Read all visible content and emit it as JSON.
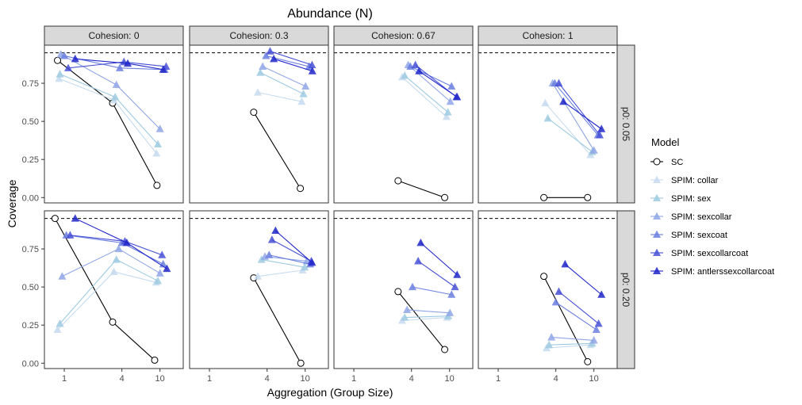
{
  "chart_data": {
    "type": "line",
    "title": "Abundance (N)",
    "xlabel": "Aggregation (Group Size)",
    "ylabel": "Coverage",
    "x_scale": "log",
    "xlim": [
      0.62,
      17.5
    ],
    "x_ticks": [
      1,
      4,
      10
    ],
    "ylim": [
      -0.035,
      1.0
    ],
    "y_ticks": [
      0.0,
      0.25,
      0.5,
      0.75
    ],
    "y_tick_labels": [
      "0.00",
      "0.25",
      "0.50",
      "0.75"
    ],
    "reference_line": 0.95,
    "col_facets": [
      "Cohesion: 0",
      "Cohesion: 0.3",
      "Cohesion: 0.67",
      "Cohesion: 1"
    ],
    "row_facets": [
      "p0: 0.05",
      "p0: 0.20"
    ],
    "legend": {
      "title": "Model",
      "position": "right",
      "entries": [
        "SC",
        "SPIM: collar",
        "SPIM: sex",
        "SPIM: sexcollar",
        "SPIM: sexcoat",
        "SPIM: sexcollarcoat",
        "SPIM: antlerssexcollarcoat"
      ]
    },
    "colors": {
      "SC": "#000000",
      "SPIM: collar": "#c6dbef",
      "SPIM: sex": "#9ecae1",
      "SPIM: sexcollar": "#8fa6e6",
      "SPIM: sexcoat": "#6b7fe0",
      "SPIM: sexcollarcoat": "#4650d6",
      "SPIM: antlerssexcollarcoat": "#2026c8"
    },
    "panels": [
      {
        "row": 0,
        "col": 0,
        "series": [
          {
            "name": "SC",
            "x": [
              0.85,
              3.2,
              9.3
            ],
            "y": [
              0.9,
              0.62,
              0.08
            ]
          },
          {
            "name": "SPIM: collar",
            "x": [
              0.88,
              3.3,
              9.2
            ],
            "y": [
              0.78,
              0.64,
              0.29
            ]
          },
          {
            "name": "SPIM: sex",
            "x": [
              0.9,
              3.4,
              9.5
            ],
            "y": [
              0.81,
              0.66,
              0.35
            ]
          },
          {
            "name": "SPIM: sexcollar",
            "x": [
              0.92,
              3.5,
              10.0
            ],
            "y": [
              0.94,
              0.74,
              0.45
            ]
          },
          {
            "name": "SPIM: sexcoat",
            "x": [
              1.0,
              3.8,
              11.2
            ],
            "y": [
              0.93,
              0.85,
              0.84
            ]
          },
          {
            "name": "SPIM: sexcollarcoat",
            "x": [
              1.1,
              4.2,
              11.6
            ],
            "y": [
              0.85,
              0.89,
              0.86
            ]
          },
          {
            "name": "SPIM: antlerssexcollarcoat",
            "x": [
              1.3,
              4.6,
              10.8
            ],
            "y": [
              0.91,
              0.88,
              0.84
            ]
          }
        ]
      },
      {
        "row": 0,
        "col": 1,
        "series": [
          {
            "name": "SC",
            "x": [
              2.9,
              8.9
            ],
            "y": [
              0.56,
              0.06
            ]
          },
          {
            "name": "SPIM: collar",
            "x": [
              3.2,
              9.2
            ],
            "y": [
              0.69,
              0.63
            ]
          },
          {
            "name": "SPIM: sex",
            "x": [
              3.4,
              9.6
            ],
            "y": [
              0.82,
              0.68
            ]
          },
          {
            "name": "SPIM: sexcollar",
            "x": [
              3.6,
              10.1
            ],
            "y": [
              0.86,
              0.73
            ]
          },
          {
            "name": "SPIM: sexcoat",
            "x": [
              3.9,
              11.0
            ],
            "y": [
              0.93,
              0.86
            ]
          },
          {
            "name": "SPIM: sexcollarcoat",
            "x": [
              4.3,
              11.8
            ],
            "y": [
              0.96,
              0.87
            ]
          },
          {
            "name": "SPIM: antlerssexcollarcoat",
            "x": [
              4.7,
              11.9
            ],
            "y": [
              0.91,
              0.83
            ]
          }
        ]
      },
      {
        "row": 0,
        "col": 2,
        "series": [
          {
            "name": "SC",
            "x": [
              2.9,
              8.9
            ],
            "y": [
              0.11,
              0.0
            ]
          },
          {
            "name": "SPIM: collar",
            "x": [
              3.2,
              9.3
            ],
            "y": [
              0.79,
              0.53
            ]
          },
          {
            "name": "SPIM: sex",
            "x": [
              3.4,
              9.6
            ],
            "y": [
              0.8,
              0.56
            ]
          },
          {
            "name": "SPIM: sexcollar",
            "x": [
              3.7,
              10.2
            ],
            "y": [
              0.87,
              0.63
            ]
          },
          {
            "name": "SPIM: sexcoat",
            "x": [
              3.9,
              10.5
            ],
            "y": [
              0.86,
              0.73
            ]
          },
          {
            "name": "SPIM: sexcollarcoat",
            "x": [
              4.4,
              11.8
            ],
            "y": [
              0.87,
              0.66
            ]
          },
          {
            "name": "SPIM: antlerssexcollarcoat",
            "x": [
              4.8,
              12.0
            ],
            "y": [
              0.83,
              0.66
            ]
          }
        ]
      },
      {
        "row": 0,
        "col": 3,
        "series": [
          {
            "name": "SC",
            "x": [
              3.0,
              8.6
            ],
            "y": [
              0.0,
              0.0
            ]
          },
          {
            "name": "SPIM: collar",
            "x": [
              3.1,
              9.2
            ],
            "y": [
              0.62,
              0.28
            ]
          },
          {
            "name": "SPIM: sex",
            "x": [
              3.3,
              9.6
            ],
            "y": [
              0.52,
              0.3
            ]
          },
          {
            "name": "SPIM: sexcollar",
            "x": [
              3.7,
              10.0
            ],
            "y": [
              0.75,
              0.31
            ]
          },
          {
            "name": "SPIM: sexcoat",
            "x": [
              3.9,
              11.0
            ],
            "y": [
              0.75,
              0.41
            ]
          },
          {
            "name": "SPIM: sexcollarcoat",
            "x": [
              4.3,
              11.5
            ],
            "y": [
              0.75,
              0.41
            ]
          },
          {
            "name": "SPIM: antlerssexcollarcoat",
            "x": [
              4.8,
              12.0
            ],
            "y": [
              0.63,
              0.45
            ]
          }
        ]
      },
      {
        "row": 1,
        "col": 0,
        "series": [
          {
            "name": "SC",
            "x": [
              0.8,
              3.2,
              8.8
            ],
            "y": [
              0.95,
              0.27,
              0.02
            ]
          },
          {
            "name": "SPIM: collar",
            "x": [
              0.85,
              3.3,
              9.1
            ],
            "y": [
              0.22,
              0.6,
              0.53
            ]
          },
          {
            "name": "SPIM: sex",
            "x": [
              0.9,
              3.5,
              9.5
            ],
            "y": [
              0.26,
              0.68,
              0.54
            ]
          },
          {
            "name": "SPIM: sexcollar",
            "x": [
              0.95,
              3.7,
              10.0
            ],
            "y": [
              0.57,
              0.75,
              0.59
            ]
          },
          {
            "name": "SPIM: sexcoat",
            "x": [
              1.05,
              4.0,
              10.8
            ],
            "y": [
              0.84,
              0.79,
              0.65
            ]
          },
          {
            "name": "SPIM: sexcollarcoat",
            "x": [
              1.15,
              4.3,
              10.5
            ],
            "y": [
              0.84,
              0.8,
              0.71
            ]
          },
          {
            "name": "SPIM: antlerssexcollarcoat",
            "x": [
              1.3,
              4.5,
              11.8
            ],
            "y": [
              0.95,
              0.79,
              0.62
            ]
          }
        ]
      },
      {
        "row": 1,
        "col": 1,
        "series": [
          {
            "name": "SC",
            "x": [
              2.9,
              9.0
            ],
            "y": [
              0.56,
              0.0
            ]
          },
          {
            "name": "SPIM: collar",
            "x": [
              3.2,
              9.4
            ],
            "y": [
              0.57,
              0.61
            ]
          },
          {
            "name": "SPIM: sex",
            "x": [
              3.5,
              9.9
            ],
            "y": [
              0.68,
              0.63
            ]
          },
          {
            "name": "SPIM: sexcollar",
            "x": [
              3.8,
              10.4
            ],
            "y": [
              0.7,
              0.67
            ]
          },
          {
            "name": "SPIM: sexcoat",
            "x": [
              4.2,
              11.3
            ],
            "y": [
              0.71,
              0.65
            ]
          },
          {
            "name": "SPIM: sexcollarcoat",
            "x": [
              4.5,
              11.6
            ],
            "y": [
              0.81,
              0.67
            ]
          },
          {
            "name": "SPIM: antlerssexcollarcoat",
            "x": [
              4.9,
              11.8
            ],
            "y": [
              0.87,
              0.66
            ]
          }
        ]
      },
      {
        "row": 1,
        "col": 2,
        "series": [
          {
            "name": "SC",
            "x": [
              2.9,
              8.9
            ],
            "y": [
              0.47,
              0.09
            ]
          },
          {
            "name": "SPIM: collar",
            "x": [
              3.2,
              9.4
            ],
            "y": [
              0.28,
              0.3
            ]
          },
          {
            "name": "SPIM: sex",
            "x": [
              3.4,
              9.7
            ],
            "y": [
              0.3,
              0.31
            ]
          },
          {
            "name": "SPIM: sexcollar",
            "x": [
              3.6,
              10.1
            ],
            "y": [
              0.35,
              0.33
            ]
          },
          {
            "name": "SPIM: sexcoat",
            "x": [
              4.1,
              10.5
            ],
            "y": [
              0.5,
              0.45
            ]
          },
          {
            "name": "SPIM: sexcollarcoat",
            "x": [
              4.7,
              11.4
            ],
            "y": [
              0.67,
              0.5
            ]
          },
          {
            "name": "SPIM: antlerssexcollarcoat",
            "x": [
              5.0,
              12.0
            ],
            "y": [
              0.79,
              0.58
            ]
          }
        ]
      },
      {
        "row": 1,
        "col": 3,
        "series": [
          {
            "name": "SC",
            "x": [
              3.0,
              8.6
            ],
            "y": [
              0.57,
              0.01
            ]
          },
          {
            "name": "SPIM: collar",
            "x": [
              3.2,
              9.2
            ],
            "y": [
              0.1,
              0.12
            ]
          },
          {
            "name": "SPIM: sex",
            "x": [
              3.4,
              9.6
            ],
            "y": [
              0.12,
              0.13
            ]
          },
          {
            "name": "SPIM: sexcollar",
            "x": [
              3.6,
              10.0
            ],
            "y": [
              0.17,
              0.15
            ]
          },
          {
            "name": "SPIM: sexcoat",
            "x": [
              4.0,
              10.6
            ],
            "y": [
              0.4,
              0.22
            ]
          },
          {
            "name": "SPIM: sexcollarcoat",
            "x": [
              4.3,
              11.2
            ],
            "y": [
              0.47,
              0.26
            ]
          },
          {
            "name": "SPIM: antlerssexcollarcoat",
            "x": [
              5.0,
              12.0
            ],
            "y": [
              0.65,
              0.45
            ]
          }
        ]
      }
    ]
  }
}
